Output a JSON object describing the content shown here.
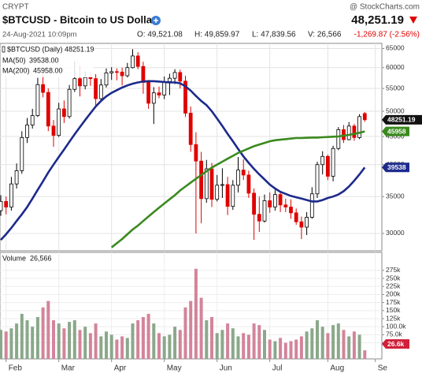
{
  "header": {
    "exchange": "CRYPT",
    "source": "@ StockCharts.com",
    "title": "$BTCUSD - Bitcoin to US Dollar",
    "last": "48,251.19",
    "datetime": "24-Aug-2021 10:09pm",
    "open": "O: 49,521.08",
    "high": "H: 49,859.97",
    "low": "L: 47,839.56",
    "volume": "V: 26,566",
    "change": "-1,269.87 (-2.56%)"
  },
  "chart_data": {
    "type": "candlestick",
    "log_scale": true,
    "price_legend": "$BTCUSD (Daily) 48251.19",
    "categories": [
      null,
      "Feb",
      null,
      null,
      null,
      null,
      null,
      null,
      null,
      null,
      null,
      "Mar",
      null,
      null,
      null,
      null,
      null,
      null,
      null,
      null,
      null,
      "Apr",
      null,
      null,
      null,
      null,
      null,
      null,
      null,
      null,
      null,
      "May",
      null,
      null,
      null,
      null,
      null,
      null,
      null,
      null,
      null,
      "Jun",
      null,
      null,
      null,
      null,
      null,
      null,
      null,
      null,
      null,
      "Jul",
      null,
      null,
      null,
      null,
      null,
      null,
      null,
      null,
      null,
      null,
      "Aug",
      null,
      null,
      null,
      null,
      null,
      null,
      null,
      null,
      "Se"
    ],
    "open": [
      33000,
      34300,
      33500,
      36900,
      39000,
      44800,
      47200,
      49100,
      55900,
      54100,
      47000,
      45200,
      50500,
      48900,
      54800,
      57300,
      55600,
      57600,
      57300,
      52700,
      55800,
      58700,
      59000,
      58900,
      58000,
      60000,
      63000,
      60300,
      56400,
      51700,
      54000,
      53500,
      56600,
      57400,
      58800,
      56700,
      49600,
      43500,
      40600,
      34700,
      39300,
      34600,
      36700,
      36800,
      33600,
      36700,
      39100,
      38300,
      35500,
      32500,
      31600,
      34400,
      33500,
      35300,
      33800,
      33500,
      32700,
      31500,
      30800,
      32100,
      35400,
      40000,
      41400,
      38100,
      42800,
      46300,
      44400,
      47000,
      44800,
      49521.08,
      null,
      null
    ],
    "high": [
      35200,
      35000,
      38000,
      40200,
      46000,
      48600,
      50500,
      57500,
      58300,
      55000,
      48200,
      51800,
      52300,
      55800,
      61700,
      60500,
      59000,
      58900,
      58400,
      57200,
      59800,
      60100,
      59800,
      60000,
      61200,
      64800,
      64000,
      61500,
      57000,
      55300,
      55400,
      57800,
      58500,
      59600,
      59500,
      58000,
      51000,
      45800,
      42200,
      40800,
      40300,
      38300,
      39400,
      38000,
      37500,
      41300,
      40900,
      39000,
      36200,
      35000,
      35300,
      35600,
      36000,
      35800,
      34700,
      34600,
      33300,
      32200,
      32800,
      36400,
      40500,
      42300,
      41700,
      43300,
      46800,
      47200,
      47800,
      47400,
      49400,
      49859.97,
      null,
      null
    ],
    "low": [
      32300,
      32500,
      33000,
      36200,
      38500,
      43800,
      46500,
      48800,
      53000,
      46000,
      43100,
      44900,
      47600,
      48500,
      54200,
      53200,
      54800,
      55600,
      51000,
      52000,
      55200,
      57000,
      56900,
      55700,
      57600,
      59800,
      59600,
      53800,
      50500,
      47400,
      52800,
      52600,
      53500,
      56000,
      55000,
      48800,
      42200,
      30000,
      31300,
      34100,
      33500,
      34300,
      34800,
      32400,
      33100,
      35600,
      37500,
      34800,
      29200,
      30200,
      31400,
      32700,
      33000,
      32800,
      32800,
      31900,
      31100,
      29300,
      29800,
      31900,
      34800,
      38400,
      37500,
      37300,
      42500,
      43800,
      44300,
      44200,
      44500,
      47839.56,
      null,
      null
    ],
    "close": [
      34300,
      33500,
      36900,
      39000,
      44800,
      47200,
      49100,
      55900,
      54100,
      47000,
      45200,
      50500,
      48900,
      54800,
      57300,
      55600,
      57600,
      57300,
      52700,
      55800,
      58700,
      59000,
      58900,
      58000,
      60000,
      63000,
      60300,
      56400,
      51700,
      54000,
      53500,
      56600,
      57400,
      58800,
      56700,
      49600,
      43500,
      40600,
      34700,
      39300,
      34600,
      36700,
      36800,
      33600,
      36700,
      39100,
      38300,
      35500,
      32500,
      31600,
      34400,
      33500,
      35300,
      33800,
      33500,
      32700,
      31500,
      30800,
      32100,
      35400,
      40000,
      41400,
      38100,
      42800,
      46300,
      44400,
      47000,
      44800,
      48900,
      48251.19,
      null,
      null
    ],
    "up_color": "#000000",
    "down_color": "#e00000",
    "series": [
      {
        "name": "MA(50)",
        "legend_value": "39538.00",
        "color": "#1c2a8c",
        "values": [
          29200,
          29900,
          30700,
          31600,
          32500,
          33500,
          34700,
          36000,
          37300,
          38700,
          40000,
          41300,
          42600,
          44000,
          45400,
          46800,
          48200,
          49600,
          51000,
          52200,
          53200,
          54000,
          54600,
          55200,
          55700,
          56100,
          56400,
          56600,
          56700,
          56700,
          56600,
          56500,
          56400,
          56400,
          56200,
          55500,
          54500,
          53300,
          52200,
          51300,
          50000,
          48500,
          47000,
          45500,
          44100,
          42700,
          41400,
          40300,
          39300,
          38400,
          37600,
          36800,
          36200,
          35700,
          35400,
          35100,
          34900,
          34700,
          34500,
          34300,
          34300,
          34500,
          34800,
          35000,
          35300,
          35800,
          36500,
          37400,
          38400,
          39538,
          null,
          null
        ]
      },
      {
        "name": "MA(200)",
        "legend_value": "45958.00",
        "color": "#3a8a1e",
        "values": [
          null,
          null,
          null,
          null,
          null,
          null,
          null,
          null,
          null,
          null,
          null,
          null,
          null,
          null,
          null,
          null,
          null,
          null,
          null,
          null,
          null,
          28300,
          28800,
          29300,
          29900,
          30500,
          31000,
          31600,
          32200,
          32800,
          33400,
          34000,
          34600,
          35200,
          35900,
          36500,
          37100,
          37700,
          38300,
          38900,
          39500,
          40000,
          40500,
          41000,
          41500,
          42000,
          42400,
          42800,
          43200,
          43500,
          43800,
          44100,
          44300,
          44400,
          44500,
          44600,
          44700,
          44700,
          44750,
          44800,
          44800,
          44850,
          44900,
          44950,
          45000,
          45150,
          45300,
          45500,
          45700,
          45958,
          null,
          null
        ]
      }
    ],
    "ylim": [
      27900,
      66400
    ],
    "yticks": [
      30000,
      35000,
      40000,
      45000,
      50000,
      55000,
      60000,
      65000
    ],
    "grid": true,
    "badges": {
      "price": "48251.19",
      "ma200": "45958",
      "ma50": "39538",
      "volume": "26.6k"
    },
    "volume": {
      "name": "Volume",
      "legend_value": "26,566",
      "up_color": "#8aa88a",
      "down_color": "#d3849a",
      "values": [
        90000,
        85000,
        95000,
        110000,
        140000,
        120000,
        100000,
        130000,
        160000,
        180000,
        120000,
        110000,
        95000,
        115000,
        120000,
        90000,
        100000,
        80000,
        110000,
        70000,
        85000,
        75000,
        60000,
        70000,
        65000,
        110000,
        120000,
        130000,
        140000,
        110000,
        80000,
        70000,
        75000,
        100000,
        90000,
        160000,
        180000,
        280000,
        190000,
        120000,
        130000,
        80000,
        90000,
        110000,
        95000,
        70000,
        80000,
        75000,
        110000,
        105000,
        90000,
        60000,
        55000,
        65000,
        50000,
        55000,
        60000,
        70000,
        85000,
        95000,
        120000,
        100000,
        80000,
        105000,
        110000,
        90000,
        70000,
        85000,
        75000,
        26566,
        null,
        null
      ],
      "ylim": [
        0,
        331000
      ],
      "yticks": [
        {
          "value": 50000,
          "label": "50.0k"
        },
        {
          "value": 75000,
          "label": "75.0k"
        },
        {
          "value": 100000,
          "label": "100.0k"
        },
        {
          "value": 125000,
          "label": "125k"
        },
        {
          "value": 150000,
          "label": "150k"
        },
        {
          "value": 175000,
          "label": "175k"
        },
        {
          "value": 200000,
          "label": "200k"
        },
        {
          "value": 225000,
          "label": "225k"
        },
        {
          "value": 250000,
          "label": "250k"
        },
        {
          "value": 275000,
          "label": "275k"
        }
      ]
    }
  }
}
